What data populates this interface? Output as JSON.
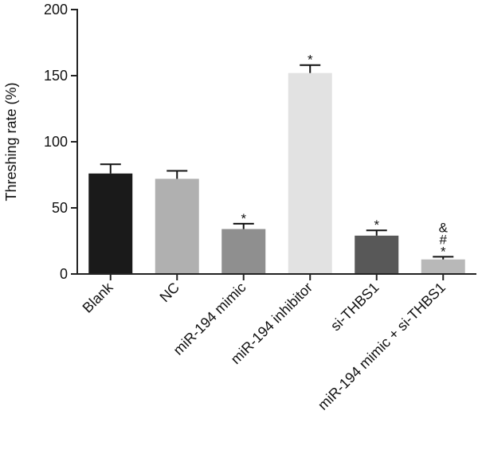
{
  "chart_data": {
    "type": "bar",
    "title": "",
    "xlabel": "",
    "ylabel": "Threshing rate (%)",
    "ylim": [
      0,
      200
    ],
    "yticks": [
      0,
      50,
      100,
      150,
      200
    ],
    "grid": false,
    "categories": [
      "Blank",
      "NC",
      "miR-194 mimic",
      "miR-194 inhibitor",
      "si-THBS1",
      "miR-194 mimic + si-THBS1"
    ],
    "values": [
      76,
      72,
      34,
      152,
      29,
      11
    ],
    "errors": [
      7,
      6,
      4,
      6,
      4,
      2
    ],
    "colors": [
      "#1a1a1a",
      "#b0b0b0",
      "#8f8f8f",
      "#e2e2e2",
      "#585858",
      "#b8b8b8"
    ],
    "annotations": [
      [],
      [],
      [
        "*"
      ],
      [
        "*"
      ],
      [
        "*"
      ],
      [
        "*",
        "#",
        "&"
      ]
    ]
  }
}
